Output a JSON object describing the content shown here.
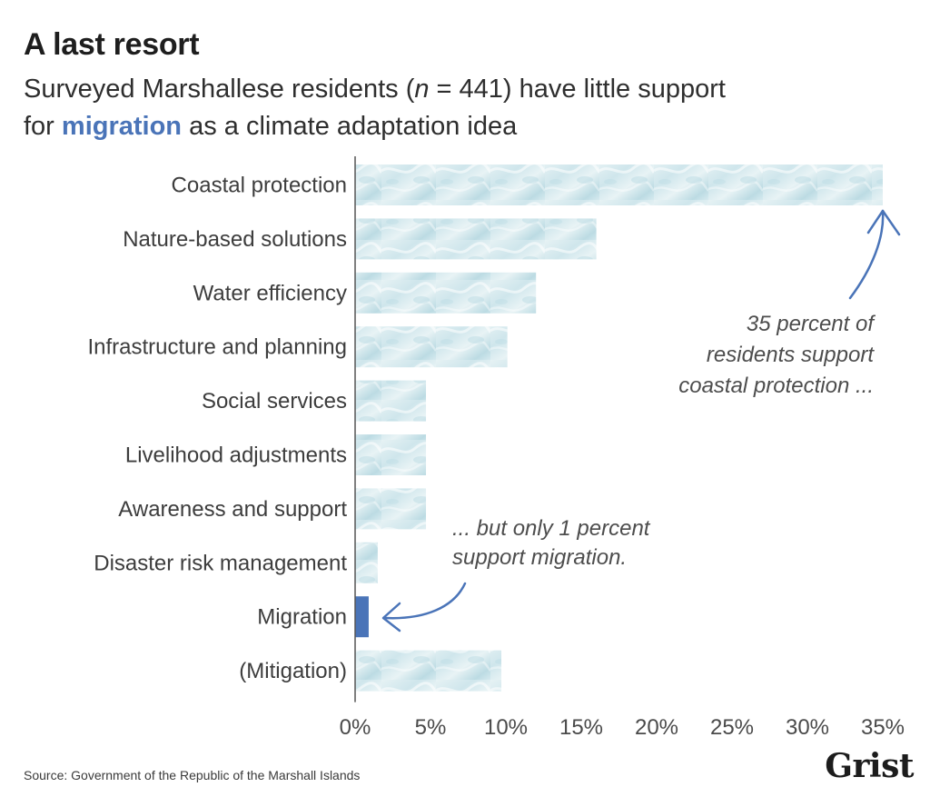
{
  "header": {
    "title": "A last resort",
    "subtitle_pre": "Surveyed Marshallese residents (",
    "subtitle_n": "n",
    "subtitle_post": " = 441) have little support",
    "subtitle2_pre": "for ",
    "subtitle2_highlight": "migration",
    "subtitle2_post": " as a climate adaptation idea"
  },
  "chart_data": {
    "type": "bar",
    "orientation": "horizontal",
    "title": "A last resort",
    "subtitle": "Surveyed Marshallese residents (n = 441) have little support for migration as a climate adaptation idea",
    "categories": [
      "Coastal protection",
      "Nature-based solutions",
      "Water efficiency",
      "Infrastructure and planning",
      "Social services",
      "Livelihood adjustments",
      "Awareness and support",
      "Disaster risk management",
      "Migration",
      "(Mitigation)"
    ],
    "values": [
      35,
      16,
      12,
      10.1,
      4.7,
      4.7,
      4.7,
      1.5,
      0.9,
      9.7
    ],
    "highlight_category": "Migration",
    "xlim": [
      0,
      35
    ],
    "xticks": [
      0,
      5,
      10,
      15,
      20,
      25,
      30,
      35
    ],
    "xtick_labels": [
      "0%",
      "5%",
      "10%",
      "15%",
      "20%",
      "25%",
      "30%",
      "35%"
    ],
    "xlabel": "",
    "ylabel": "",
    "grid": false,
    "annotations": [
      {
        "target": "Coastal protection",
        "lines": [
          "35 percent of",
          "residents support",
          "coastal protection ..."
        ]
      },
      {
        "target": "Migration",
        "lines": [
          "... but only 1 percent",
          "support migration."
        ]
      }
    ]
  },
  "colors": {
    "bar_fill": "#d9ebef",
    "bar_fill_deep": "#a9d0dc",
    "highlight": "#4a74b8",
    "arrow": "#4a74b8",
    "axis": "#555555"
  },
  "footer": {
    "source": "Source: Government of the Republic of the Marshall Islands",
    "logo": "Grist"
  }
}
